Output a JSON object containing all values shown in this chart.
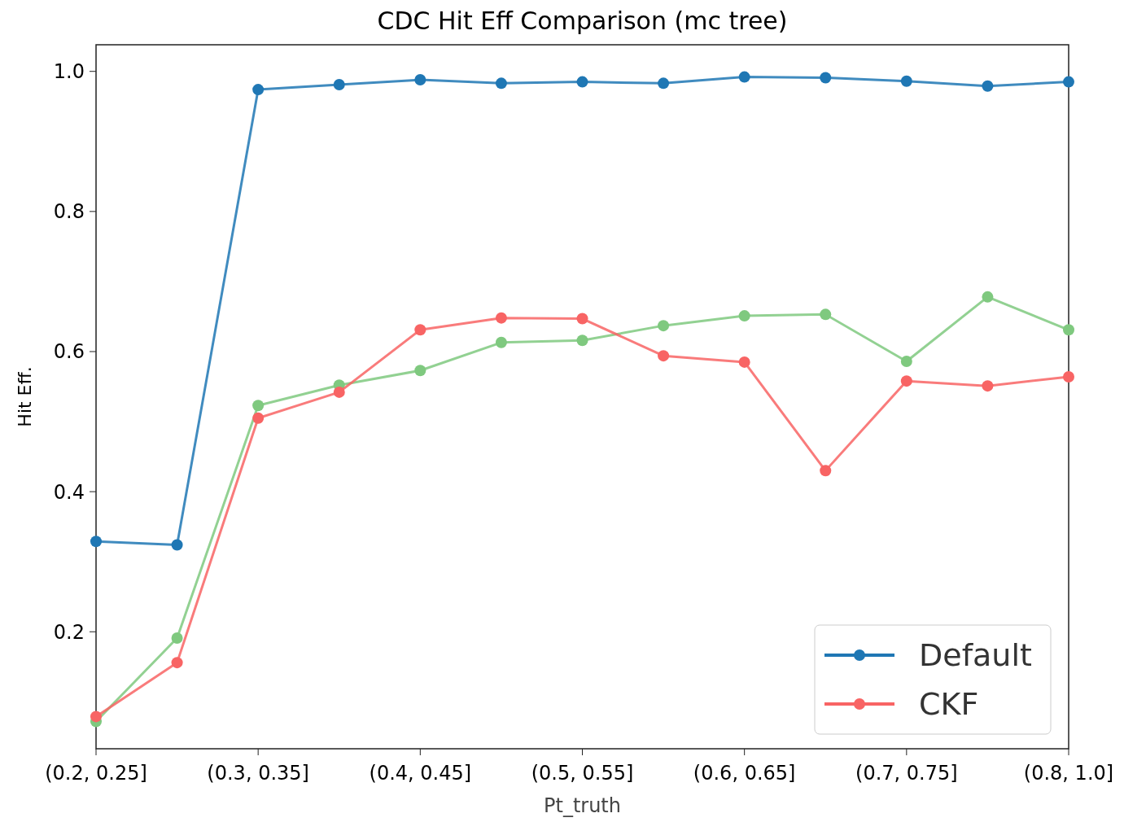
{
  "chart_data": {
    "type": "line",
    "title": "CDC Hit Eff Comparison (mc tree)",
    "xlabel": "Pt_truth",
    "ylabel": "Hit Eff.",
    "categories": [
      "(0.2, 0.25]",
      null,
      "(0.3, 0.35]",
      null,
      "(0.4, 0.45]",
      null,
      "(0.5, 0.55]",
      null,
      "(0.6, 0.65]",
      null,
      "(0.7, 0.75]",
      null,
      "(0.8, 1.0]"
    ],
    "series": [
      {
        "name": "Default",
        "color": "#1f77b4",
        "values": [
          0.329,
          0.324,
          0.974,
          0.981,
          0.988,
          0.983,
          0.985,
          0.983,
          0.992,
          0.991,
          0.986,
          0.979,
          0.985
        ]
      },
      {
        "color": "#7fc97f",
        "values": [
          0.072,
          0.191,
          0.523,
          0.552,
          0.573,
          0.613,
          0.616,
          0.637,
          0.651,
          0.653,
          0.586,
          0.678,
          0.631
        ]
      },
      {
        "name": "CKF",
        "color": "#f86464",
        "values": [
          0.079,
          0.156,
          0.505,
          0.542,
          0.631,
          0.648,
          0.647,
          0.594,
          0.585,
          0.43,
          0.558,
          0.551,
          0.564
        ]
      }
    ],
    "ylim": [
      0.033,
      1.038
    ],
    "yticks": [
      0.2,
      0.4,
      0.6,
      0.8,
      {
        "value": 1.0,
        "label": "1.0"
      }
    ],
    "grid": false,
    "legend": "bottom right",
    "marker": "circle",
    "line_style": "solid"
  }
}
